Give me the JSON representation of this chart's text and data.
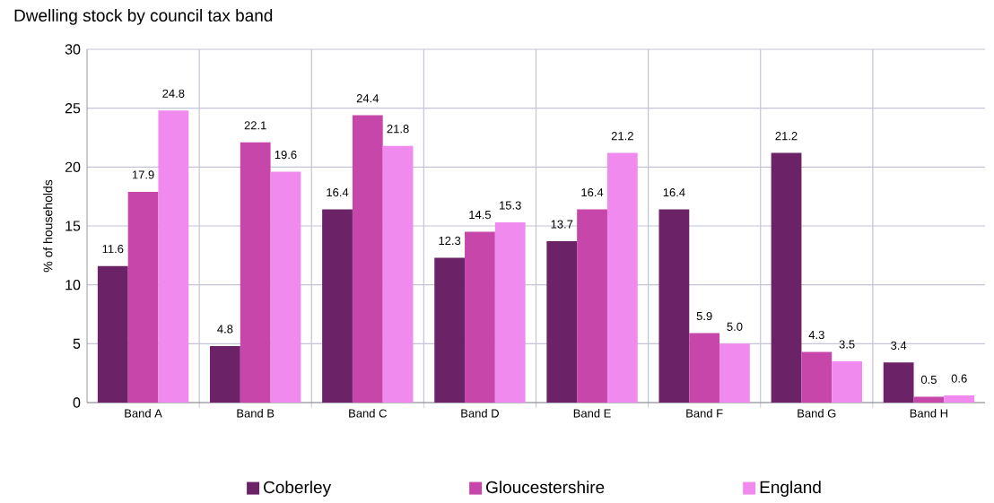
{
  "chart_data": {
    "type": "bar",
    "title": "Dwelling stock by council tax band",
    "ylabel": "% of households",
    "categories": [
      "Band A",
      "Band B",
      "Band C",
      "Band D",
      "Band E",
      "Band F",
      "Band G",
      "Band H"
    ],
    "series": [
      {
        "name": "Coberley",
        "color": "#6b2266",
        "values": [
          11.6,
          4.8,
          16.4,
          12.3,
          13.7,
          16.4,
          21.2,
          3.4
        ],
        "value_labels": [
          "11.6",
          "4.8",
          "16.4",
          "12.3",
          "13.7",
          "16.4",
          "21.2",
          "3.4"
        ]
      },
      {
        "name": "Gloucestershire",
        "color": "#c646a9",
        "values": [
          17.9,
          22.1,
          24.4,
          14.5,
          16.4,
          5.9,
          4.3,
          0.5
        ],
        "value_labels": [
          "17.9",
          "22.1",
          "24.4",
          "14.5",
          "16.4",
          "5.9",
          "4.3",
          "0.5"
        ]
      },
      {
        "name": "England",
        "color": "#f08aee",
        "values": [
          24.8,
          19.6,
          21.8,
          15.3,
          21.2,
          5.0,
          3.5,
          0.6
        ],
        "value_labels": [
          "24.8",
          "19.6",
          "21.8",
          "15.3",
          "21.2",
          "5.0",
          "3.5",
          "0.6"
        ]
      }
    ],
    "ylim": [
      0,
      30
    ],
    "yticks": [
      0,
      5,
      10,
      15,
      20,
      25,
      30
    ],
    "grid": true,
    "legend": "bottom"
  }
}
